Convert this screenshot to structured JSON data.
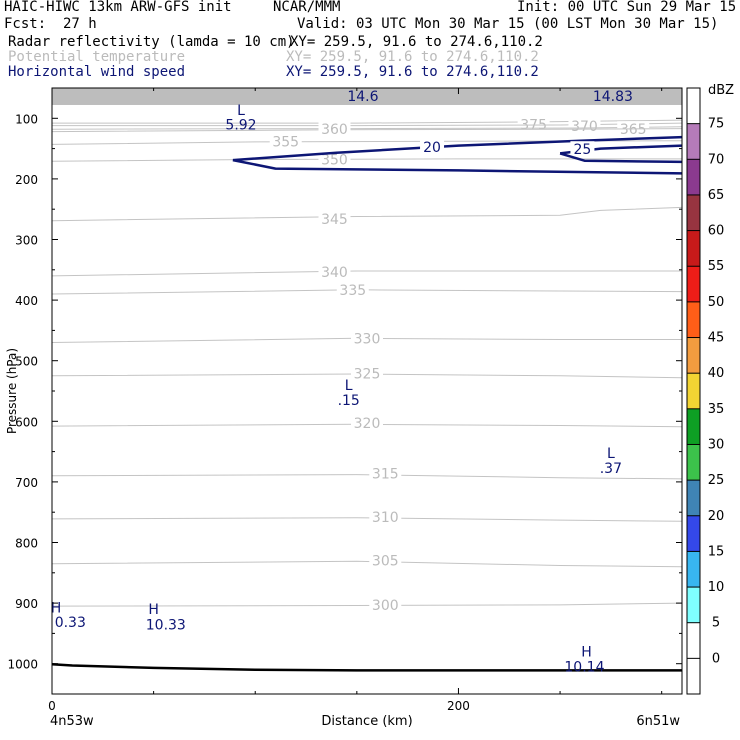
{
  "header": {
    "model": "HAIC-HIWC 13km ARW-GFS init",
    "org": "NCAR/MMM",
    "init": "Init: 00 UTC Sun 29 Mar 15",
    "fcst_label": "Fcst:",
    "fcst_value": "27 h",
    "valid": "Valid: 03 UTC Mon 30 Mar 15 (00 LST Mon 30 Mar 15)",
    "fields": [
      {
        "name": "Radar reflectivity (lamda = 10 cm)",
        "xy": "XY= 259.5, 91.6 to 274.6,110.2",
        "color": "#000000"
      },
      {
        "name": "Potential temperature",
        "xy": "XY= 259.5, 91.6 to 274.6,110.2",
        "color": "#bbbbbb"
      },
      {
        "name": "Horizontal wind speed",
        "xy": "XY= 259.5, 91.6 to 274.6,110.2",
        "color": "#0d1675"
      }
    ]
  },
  "chart_data": {
    "type": "cross-section contour",
    "xlabel": "Distance (km)",
    "ylabel": "Pressure (hPa)",
    "x_range": [
      0,
      310
    ],
    "y_range_hpa": [
      50,
      1050
    ],
    "y_scale": "linear, inverted",
    "x_ticks": [
      {
        "value": 0,
        "label": "0"
      },
      {
        "value": 200,
        "label": "200"
      }
    ],
    "x_minor_ticks": [
      50,
      100,
      150,
      250,
      300
    ],
    "y_ticks": [
      100,
      200,
      300,
      400,
      500,
      600,
      700,
      800,
      900,
      1000
    ],
    "endpoints": {
      "left": "4n53w",
      "right": "6n51w"
    },
    "theta_contours": [
      {
        "value": 375,
        "label": "375",
        "label_pos": [
          237,
          110
        ],
        "points": [
          [
            0,
            108
          ],
          [
            150,
            108
          ],
          [
            240,
            106
          ],
          [
            310,
            103
          ]
        ]
      },
      {
        "value": 370,
        "label": "370",
        "label_pos": [
          262,
          113
        ],
        "points": [
          [
            0,
            112
          ],
          [
            150,
            112
          ],
          [
            250,
            111
          ],
          [
            310,
            108
          ]
        ]
      },
      {
        "value": 365,
        "label": "365",
        "label_pos": [
          286,
          118
        ],
        "points": [
          [
            0,
            118
          ],
          [
            150,
            117
          ],
          [
            260,
            116
          ],
          [
            310,
            114
          ]
        ]
      },
      {
        "value": 360,
        "label": "360",
        "label_pos": [
          139,
          118
        ],
        "points": [
          [
            0,
            122
          ],
          [
            140,
            119
          ],
          [
            250,
            118
          ],
          [
            310,
            117
          ]
        ]
      },
      {
        "value": 355,
        "label": "355",
        "label_pos": [
          115,
          138
        ],
        "points": [
          [
            0,
            143
          ],
          [
            100,
            139
          ],
          [
            200,
            138
          ],
          [
            310,
            137
          ]
        ]
      },
      {
        "value": 350,
        "label": "350",
        "label_pos": [
          139,
          168
        ],
        "points": [
          [
            0,
            171
          ],
          [
            100,
            168
          ],
          [
            200,
            167
          ],
          [
            310,
            167
          ]
        ]
      },
      {
        "value": 345,
        "label": "345",
        "label_pos": [
          139,
          266
        ],
        "points": [
          [
            0,
            269
          ],
          [
            150,
            262
          ],
          [
            250,
            260
          ],
          [
            270,
            252
          ],
          [
            310,
            247
          ]
        ]
      },
      {
        "value": 340,
        "label": "340",
        "label_pos": [
          139,
          354
        ],
        "points": [
          [
            0,
            360
          ],
          [
            150,
            352
          ],
          [
            250,
            352
          ],
          [
            310,
            352
          ]
        ]
      },
      {
        "value": 335,
        "label": "335",
        "label_pos": [
          148,
          383
        ],
        "points": [
          [
            0,
            390
          ],
          [
            150,
            383
          ],
          [
            250,
            385
          ],
          [
            310,
            386
          ]
        ]
      },
      {
        "value": 330,
        "label": "330",
        "label_pos": [
          155,
          463
        ],
        "points": [
          [
            0,
            470
          ],
          [
            150,
            463
          ],
          [
            250,
            465
          ],
          [
            310,
            465
          ]
        ]
      },
      {
        "value": 325,
        "label": "325",
        "label_pos": [
          155,
          521
        ],
        "points": [
          [
            0,
            525
          ],
          [
            150,
            522
          ],
          [
            250,
            525
          ],
          [
            310,
            528
          ]
        ]
      },
      {
        "value": 320,
        "label": "320",
        "label_pos": [
          155,
          603
        ],
        "points": [
          [
            0,
            608
          ],
          [
            150,
            605
          ],
          [
            250,
            607
          ],
          [
            310,
            609
          ]
        ]
      },
      {
        "value": 315,
        "label": "315",
        "label_pos": [
          164,
          686
        ],
        "points": [
          [
            0,
            690
          ],
          [
            150,
            688
          ],
          [
            250,
            693
          ],
          [
            310,
            695
          ]
        ]
      },
      {
        "value": 310,
        "label": "310",
        "label_pos": [
          164,
          758
        ],
        "points": [
          [
            0,
            761
          ],
          [
            150,
            759
          ],
          [
            250,
            763
          ],
          [
            310,
            765
          ]
        ]
      },
      {
        "value": 305,
        "label": "305",
        "label_pos": [
          164,
          830
        ],
        "points": [
          [
            0,
            835
          ],
          [
            150,
            831
          ],
          [
            250,
            838
          ],
          [
            310,
            840
          ]
        ]
      },
      {
        "value": 300,
        "label": "300",
        "label_pos": [
          164,
          903
        ],
        "points": [
          [
            0,
            905
          ],
          [
            150,
            904
          ],
          [
            250,
            903
          ],
          [
            310,
            900
          ]
        ]
      }
    ],
    "wind_contours": [
      {
        "value": 20,
        "label": "20",
        "label_pos": [
          187,
          147
        ],
        "points": [
          [
            89,
            169
          ],
          [
            140,
            157
          ],
          [
            200,
            145
          ],
          [
            260,
            137
          ],
          [
            310,
            131
          ]
        ]
      },
      {
        "value": 20,
        "label": "",
        "points": [
          [
            89,
            169
          ],
          [
            110,
            183
          ],
          [
            200,
            186
          ],
          [
            310,
            191
          ]
        ]
      },
      {
        "value": 25,
        "label": "25",
        "label_pos": [
          261,
          151
        ],
        "points": [
          [
            250,
            158
          ],
          [
            270,
            150
          ],
          [
            310,
            145
          ]
        ]
      },
      {
        "value": 25,
        "label": "",
        "points": [
          [
            250,
            158
          ],
          [
            262,
            170
          ],
          [
            310,
            172
          ]
        ]
      }
    ],
    "top_band_hpa": [
      50,
      78
    ],
    "surface_line": {
      "points": [
        [
          0,
          1001
        ],
        [
          10,
          1003
        ],
        [
          50,
          1007
        ],
        [
          100,
          1010
        ],
        [
          150,
          1011
        ],
        [
          250,
          1011
        ],
        [
          310,
          1011
        ]
      ]
    },
    "annotations": [
      {
        "text": "14.6",
        "pos": [
          153,
          63
        ],
        "color": "#0d1675"
      },
      {
        "text": "14.83",
        "pos": [
          276,
          63
        ],
        "color": "#0d1675"
      },
      {
        "text": "L",
        "pos": [
          93,
          86
        ],
        "color": "#0d1675"
      },
      {
        "text": "5.92",
        "pos": [
          93,
          110
        ],
        "color": "#0d1675"
      },
      {
        "text": "L",
        "pos": [
          146,
          540
        ],
        "color": "#0d1675"
      },
      {
        "text": ".15",
        "pos": [
          146,
          565
        ],
        "color": "#0d1675"
      },
      {
        "text": "L",
        "pos": [
          275,
          652
        ],
        "color": "#0d1675"
      },
      {
        "text": ".37",
        "pos": [
          275,
          677
        ],
        "color": "#0d1675"
      },
      {
        "text": "H",
        "pos": [
          2,
          907
        ],
        "color": "#0d1675"
      },
      {
        "text": "0.33",
        "pos": [
          9,
          931
        ],
        "color": "#0d1675"
      },
      {
        "text": "H",
        "pos": [
          50,
          910
        ],
        "color": "#0d1675"
      },
      {
        "text": "10.33",
        "pos": [
          56,
          935
        ],
        "color": "#0d1675"
      },
      {
        "text": "H",
        "pos": [
          263,
          980
        ],
        "color": "#0d1675"
      },
      {
        "text": "10.14",
        "pos": [
          262,
          1005
        ],
        "color": "#0d1675"
      }
    ]
  },
  "colorbar": {
    "unit": "dBZ",
    "levels": [
      "0",
      "5",
      "10",
      "15",
      "20",
      "25",
      "30",
      "35",
      "40",
      "45",
      "50",
      "55",
      "60",
      "65",
      "70",
      "75"
    ],
    "colors": [
      "#ffffff",
      "#ffffff",
      "#7fffff",
      "#38b6f0",
      "#3448ea",
      "#3f84b5",
      "#3cc24b",
      "#0e9f24",
      "#f2d433",
      "#f39c3f",
      "#ff5e18",
      "#ee1d18",
      "#c81a1a",
      "#973440",
      "#8b3a8f",
      "#b57bb9",
      "#ffffff"
    ]
  }
}
